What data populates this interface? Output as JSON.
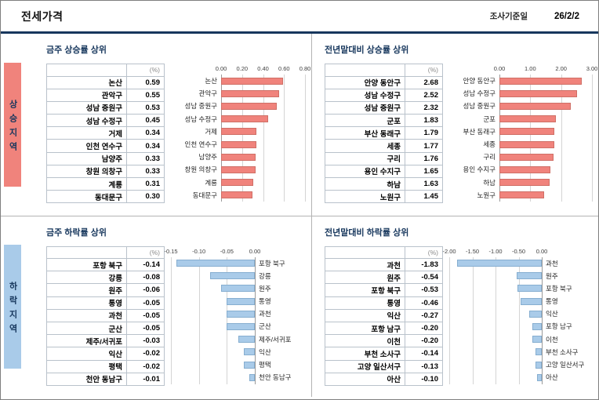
{
  "header": {
    "title": "전세가격",
    "survey_label": "조사기준일",
    "survey_date": "26/2/2"
  },
  "side_labels": {
    "rising": "상승지역",
    "falling": "하락지역"
  },
  "colors": {
    "rising_accent": "#F0837C",
    "falling_accent": "#A9CBE9",
    "title_navy": "#17375D",
    "header_rule": "#17375D",
    "grid_line": "#D4D4D4",
    "table_border": "#B9C2CB"
  },
  "chart_data": [
    {
      "type": "bar",
      "title": "금주 상승률 상위",
      "unit": "(%)",
      "direction": "positive",
      "axis_ticks": [
        "0.00",
        "0.20",
        "0.40",
        "0.60",
        "0.80"
      ],
      "xlim": [
        0,
        0.8
      ],
      "categories": [
        "논산",
        "관악구",
        "성남 중원구",
        "성남 수정구",
        "거제",
        "인천 연수구",
        "남양주",
        "창원 의창구",
        "계룡",
        "동대문구"
      ],
      "values": [
        0.59,
        0.55,
        0.53,
        0.45,
        0.34,
        0.34,
        0.33,
        0.33,
        0.31,
        0.3
      ],
      "bar_color": "#F0837C"
    },
    {
      "type": "bar",
      "title": "전년말대비 상승률 상위",
      "unit": "(%)",
      "direction": "positive",
      "axis_ticks": [
        "0.00",
        "1.00",
        "2.00",
        "3.00"
      ],
      "xlim": [
        0,
        3.0
      ],
      "categories": [
        "안양 동안구",
        "성남 수정구",
        "성남 중원구",
        "군포",
        "부산 동래구",
        "세종",
        "구리",
        "용인 수지구",
        "하남",
        "노원구"
      ],
      "values": [
        2.68,
        2.52,
        2.32,
        1.83,
        1.79,
        1.77,
        1.76,
        1.65,
        1.63,
        1.45
      ],
      "bar_color": "#F0837C"
    },
    {
      "type": "bar",
      "title": "금주 하락률 상위",
      "unit": "(%)",
      "direction": "negative",
      "axis_ticks": [
        "-0.15",
        "-0.10",
        "-0.05",
        "0.00"
      ],
      "xlim": [
        -0.15,
        0
      ],
      "categories": [
        "포항 북구",
        "강릉",
        "원주",
        "통영",
        "과천",
        "군산",
        "제주/서귀포",
        "익산",
        "평택",
        "천안 동남구"
      ],
      "values": [
        -0.14,
        -0.08,
        -0.06,
        -0.05,
        -0.05,
        -0.05,
        -0.03,
        -0.02,
        -0.02,
        -0.01
      ],
      "bar_color": "#A9CBE9"
    },
    {
      "type": "bar",
      "title": "전년말대비 하락률 상위",
      "unit": "(%)",
      "direction": "negative",
      "axis_ticks": [
        "-2.00",
        "-1.50",
        "-1.00",
        "-0.50",
        "0.00"
      ],
      "xlim": [
        -2.0,
        0
      ],
      "categories": [
        "과천",
        "원주",
        "포항 북구",
        "통영",
        "익산",
        "포항 남구",
        "이천",
        "부천 소사구",
        "고양 일산서구",
        "아산"
      ],
      "values": [
        -1.83,
        -0.54,
        -0.53,
        -0.46,
        -0.27,
        -0.2,
        -0.2,
        -0.14,
        -0.13,
        -0.1
      ],
      "bar_color": "#A9CBE9"
    }
  ]
}
